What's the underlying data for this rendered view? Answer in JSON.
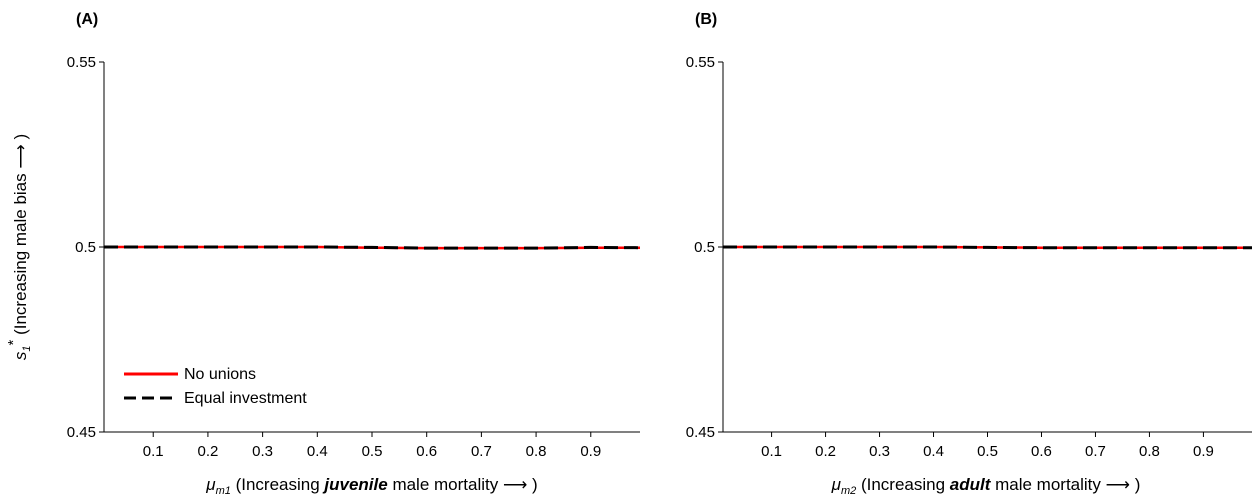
{
  "chart_data": [
    {
      "type": "line",
      "panel_label": "(A)",
      "xlabel": {
        "symbol": "μ",
        "subscript": "m1",
        "pre": "(Increasing ",
        "emph": "juvenile",
        "post": " male mortality ⟶ )"
      },
      "ylabel": {
        "symbol": "s",
        "subscript": "1",
        "star": "*",
        "text": "(Increasing male bias ⟶ )"
      },
      "xlim": [
        0.01,
        0.99
      ],
      "ylim": [
        0.45,
        0.55
      ],
      "xticks": [
        "0.1",
        "0.2",
        "0.3",
        "0.4",
        "0.5",
        "0.6",
        "0.7",
        "0.8",
        "0.9"
      ],
      "yticks": [
        "0.45",
        "0.5",
        "0.55"
      ],
      "grid": false,
      "legend_position": "bottom-left",
      "x": [
        0.01,
        0.1,
        0.2,
        0.3,
        0.4,
        0.5,
        0.6,
        0.7,
        0.8,
        0.9,
        0.99
      ],
      "series": [
        {
          "name": "No unions",
          "color": "#ff0000",
          "style": "solid",
          "values": [
            0.5,
            0.5,
            0.5,
            0.5,
            0.5,
            0.4998,
            0.4997,
            0.4997,
            0.4997,
            0.4998,
            0.4998
          ]
        },
        {
          "name": "Equal investment",
          "color": "#000000",
          "style": "dashed",
          "values": [
            0.5,
            0.5,
            0.5,
            0.5,
            0.5,
            0.4999,
            0.4997,
            0.4997,
            0.4997,
            0.4999,
            0.4998
          ]
        }
      ]
    },
    {
      "type": "line",
      "panel_label": "(B)",
      "xlabel": {
        "symbol": "μ",
        "subscript": "m2",
        "pre": "(Increasing ",
        "emph": "adult",
        "post": " male mortality ⟶ )"
      },
      "xlim": [
        0.01,
        0.99
      ],
      "ylim": [
        0.45,
        0.55
      ],
      "xticks": [
        "0.1",
        "0.2",
        "0.3",
        "0.4",
        "0.5",
        "0.6",
        "0.7",
        "0.8",
        "0.9"
      ],
      "yticks": [
        "0.45",
        "0.5",
        "0.55"
      ],
      "grid": false,
      "x": [
        0.01,
        0.1,
        0.2,
        0.3,
        0.4,
        0.5,
        0.6,
        0.7,
        0.8,
        0.9,
        0.99
      ],
      "series": [
        {
          "name": "No unions",
          "color": "#ff0000",
          "style": "solid",
          "values": [
            0.5,
            0.5,
            0.5,
            0.5,
            0.5,
            0.4999,
            0.4998,
            0.4998,
            0.4998,
            0.4998,
            0.4998
          ]
        },
        {
          "name": "Equal investment",
          "color": "#000000",
          "style": "dashed",
          "values": [
            0.5,
            0.5,
            0.5,
            0.5,
            0.5,
            0.4999,
            0.4998,
            0.4998,
            0.4998,
            0.4998,
            0.4998
          ]
        }
      ]
    }
  ]
}
